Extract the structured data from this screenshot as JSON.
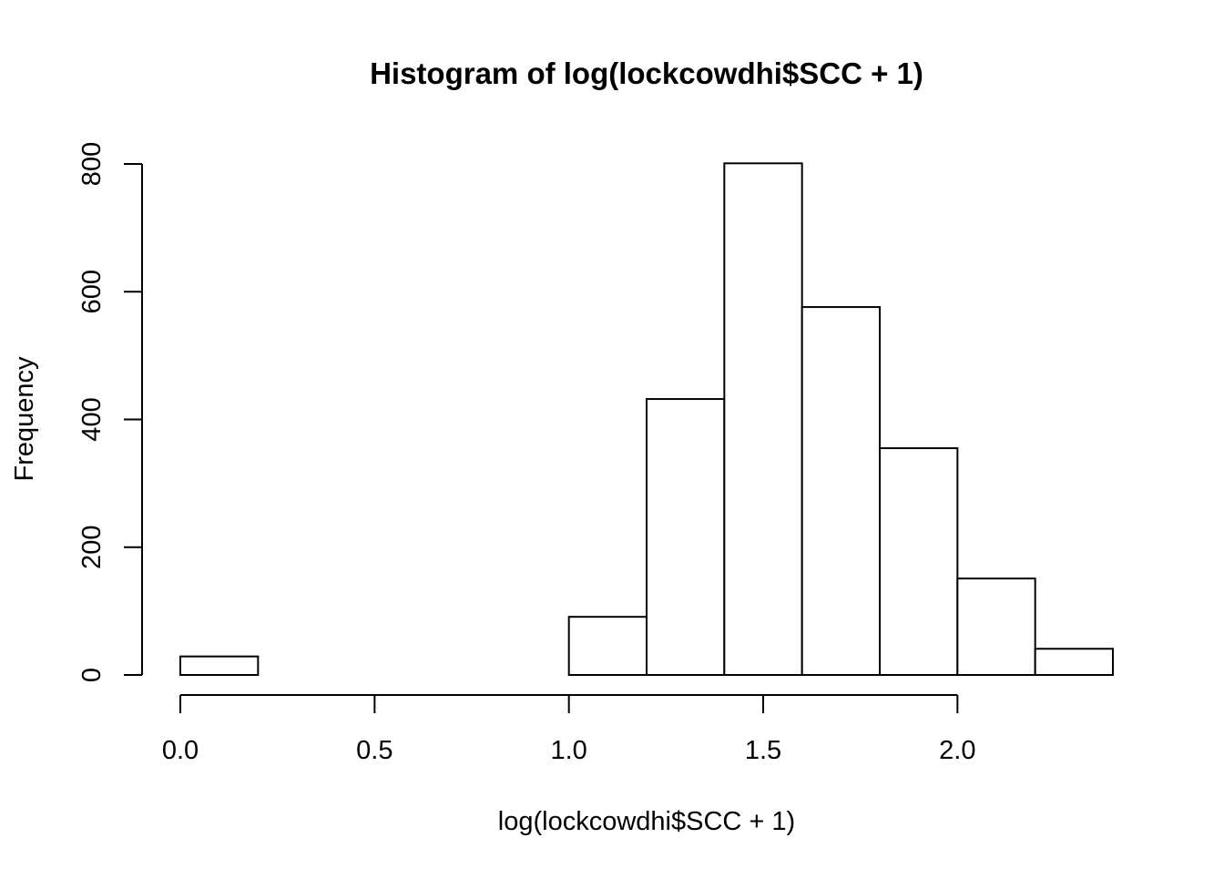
{
  "chart_data": {
    "type": "bar",
    "title": "Histogram of log(lockcowdhi$SCC + 1)",
    "xlabel": "log(lockcowdhi$SCC + 1)",
    "ylabel": "Frequency",
    "bins": [
      {
        "start": 0.0,
        "end": 0.2,
        "count": 29
      },
      {
        "start": 0.2,
        "end": 0.4,
        "count": 0
      },
      {
        "start": 0.4,
        "end": 0.6,
        "count": 0
      },
      {
        "start": 0.6,
        "end": 0.8,
        "count": 0
      },
      {
        "start": 0.8,
        "end": 1.0,
        "count": 0
      },
      {
        "start": 1.0,
        "end": 1.2,
        "count": 91
      },
      {
        "start": 1.2,
        "end": 1.4,
        "count": 432
      },
      {
        "start": 1.4,
        "end": 1.6,
        "count": 801
      },
      {
        "start": 1.6,
        "end": 1.8,
        "count": 576
      },
      {
        "start": 1.8,
        "end": 2.0,
        "count": 355
      },
      {
        "start": 2.0,
        "end": 2.2,
        "count": 151
      },
      {
        "start": 2.2,
        "end": 2.4,
        "count": 41
      }
    ],
    "xticks": [
      0.0,
      0.5,
      1.0,
      1.5,
      2.0
    ],
    "xtick_labels": [
      "0.0",
      "0.5",
      "1.0",
      "1.5",
      "2.0"
    ],
    "yticks": [
      0,
      200,
      400,
      600,
      800
    ],
    "ytick_labels": [
      "0",
      "200",
      "400",
      "600",
      "800"
    ],
    "xlim": [
      0.0,
      2.4
    ],
    "ylim": [
      0,
      800
    ],
    "grid": false,
    "bar_fill": "#ffffff",
    "bar_stroke": "#000000"
  }
}
